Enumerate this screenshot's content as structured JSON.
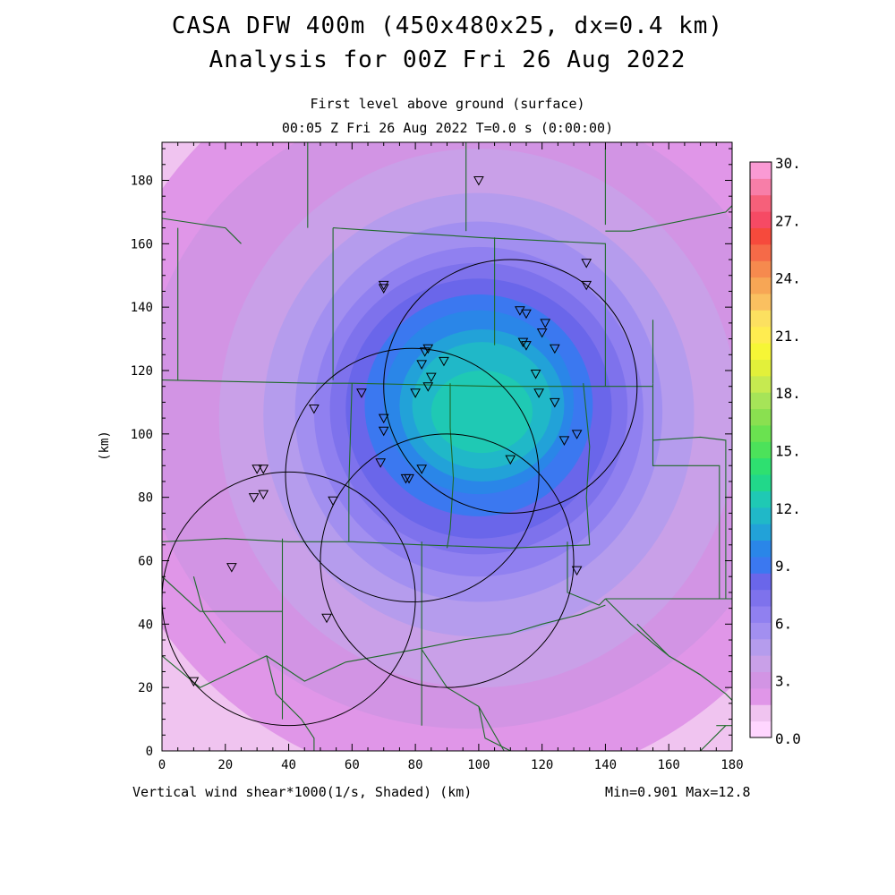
{
  "header": {
    "title_line1": "CASA DFW 400m (450x480x25, dx=0.4 km)",
    "title_line2": "Analysis for 00Z Fri 26 Aug 2022",
    "subtitle_line1": "First level above ground (surface)",
    "subtitle_line2": "00:05 Z Fri 26 Aug 2022   T=0.0 s (0:00:00)"
  },
  "footer": {
    "xlabel": "Vertical wind shear*1000(1/s, Shaded)  (km)",
    "minmax": "Min=0.901 Max=12.8"
  },
  "chart_data": {
    "type": "heatmap",
    "title": "CASA DFW 400m (450x480x25, dx=0.4 km) Analysis for 00Z Fri 26 Aug 2022",
    "xlabel": "Vertical wind shear*1000(1/s, Shaded)  (km)",
    "ylabel": "(km)",
    "xlim": [
      0,
      180
    ],
    "ylim": [
      0,
      192
    ],
    "x_ticks": [
      0,
      20,
      40,
      60,
      80,
      100,
      120,
      140,
      160,
      180
    ],
    "y_ticks": [
      0,
      20,
      40,
      60,
      80,
      100,
      120,
      140,
      160,
      180
    ],
    "field_min": 0.901,
    "field_max": 12.8,
    "field_center": [
      100,
      105
    ],
    "colorbar": {
      "labels": [
        "0.0",
        "3.",
        "6.",
        "9.",
        "12.",
        "15.",
        "18.",
        "21.",
        "24.",
        "27.",
        "30."
      ],
      "label_values": [
        0,
        3,
        6,
        9,
        12,
        15,
        18,
        21,
        24,
        27,
        30
      ],
      "levels": [
        0,
        1.5,
        3,
        3.75,
        4.5,
        5.25,
        6,
        6.75,
        7.5,
        8.25,
        9,
        9.75,
        10.5,
        11.25,
        12,
        12.75,
        13.5,
        14.25,
        15,
        15.75,
        16.5,
        17.25,
        18,
        18.75,
        19.5,
        20.25,
        21,
        21.75,
        22.5,
        23.25,
        24,
        25.5,
        27,
        28.5,
        30
      ],
      "colors": [
        "#ffd6ff",
        "#f0c4f0",
        "#e096e8",
        "#d294e4",
        "#c9a0e8",
        "#b59ced",
        "#a28ff0",
        "#9080f0",
        "#7e72ec",
        "#6a66ea",
        "#3b78f0",
        "#2a86e8",
        "#22a2d8",
        "#20b8c8",
        "#1fc9b4",
        "#21d88a",
        "#2ee070",
        "#4ce25a",
        "#6ae250",
        "#8ae050",
        "#a6e458",
        "#c6ea50",
        "#e2f03a",
        "#f6f636",
        "#ffec50",
        "#fce060",
        "#fac060",
        "#f7a655",
        "#f68a4e",
        "#f56a48",
        "#f64a3c",
        "#f64a64",
        "#f6607a",
        "#f77ea8",
        "#fa9ad4"
      ]
    },
    "contour_bands": [
      {
        "level": 1.5,
        "cx": 100,
        "cy": 105,
        "rx": 150,
        "ry": 150
      },
      {
        "level": 3,
        "cx": 98,
        "cy": 108,
        "rx": 120,
        "ry": 120
      },
      {
        "level": 3.75,
        "cx": 97,
        "cy": 107,
        "rx": 104,
        "ry": 100
      },
      {
        "level": 4.5,
        "cx": 100,
        "cy": 105,
        "rx": 82,
        "ry": 85
      },
      {
        "level": 5.25,
        "cx": 100,
        "cy": 106,
        "rx": 68,
        "ry": 70
      },
      {
        "level": 6,
        "cx": 100,
        "cy": 107,
        "rx": 58,
        "ry": 60
      },
      {
        "level": 6.75,
        "cx": 100,
        "cy": 107,
        "rx": 52,
        "ry": 52
      },
      {
        "level": 7.5,
        "cx": 100,
        "cy": 108,
        "rx": 47,
        "ry": 46
      },
      {
        "level": 8.25,
        "cx": 100,
        "cy": 108,
        "rx": 42,
        "ry": 41
      },
      {
        "level": 9,
        "cx": 100,
        "cy": 109,
        "rx": 36,
        "ry": 35
      },
      {
        "level": 9.75,
        "cx": 100,
        "cy": 110,
        "rx": 30,
        "ry": 29
      },
      {
        "level": 10.5,
        "cx": 101,
        "cy": 109,
        "rx": 26,
        "ry": 24
      },
      {
        "level": 11.25,
        "cx": 101,
        "cy": 109,
        "rx": 22,
        "ry": 20
      },
      {
        "level": 12,
        "cx": 101,
        "cy": 107,
        "rx": 16,
        "ry": 13
      }
    ],
    "radar_rings": [
      {
        "cx": 79,
        "cy": 87,
        "r": 40
      },
      {
        "cx": 40,
        "cy": 48,
        "r": 40
      },
      {
        "cx": 90,
        "cy": 60,
        "r": 40
      },
      {
        "cx": 110,
        "cy": 115,
        "r": 40
      }
    ],
    "stations": [
      [
        100,
        180
      ],
      [
        70,
        147
      ],
      [
        70,
        146
      ],
      [
        134,
        154
      ],
      [
        134,
        147
      ],
      [
        113,
        139
      ],
      [
        115,
        138
      ],
      [
        121,
        135
      ],
      [
        120,
        132
      ],
      [
        114,
        129
      ],
      [
        115,
        128
      ],
      [
        124,
        127
      ],
      [
        84,
        127
      ],
      [
        83,
        126
      ],
      [
        89,
        123
      ],
      [
        82,
        122
      ],
      [
        118,
        119
      ],
      [
        85,
        118
      ],
      [
        84,
        115
      ],
      [
        63,
        113
      ],
      [
        80,
        113
      ],
      [
        119,
        113
      ],
      [
        124,
        110
      ],
      [
        48,
        108
      ],
      [
        70,
        105
      ],
      [
        70,
        101
      ],
      [
        131,
        100
      ],
      [
        127,
        98
      ],
      [
        69,
        91
      ],
      [
        110,
        92
      ],
      [
        82,
        89
      ],
      [
        78,
        86
      ],
      [
        77,
        86
      ],
      [
        30,
        89
      ],
      [
        32,
        89
      ],
      [
        32,
        81
      ],
      [
        29,
        80
      ],
      [
        54,
        79
      ],
      [
        22,
        58
      ],
      [
        131,
        57
      ],
      [
        52,
        42
      ],
      [
        10,
        22
      ]
    ],
    "boundaries": [
      [
        [
          0,
          117
        ],
        [
          48,
          116
        ],
        [
          60,
          116
        ],
        [
          105,
          115
        ],
        [
          133,
          115
        ],
        [
          155,
          115
        ]
      ],
      [
        [
          5,
          165
        ],
        [
          5,
          117
        ]
      ],
      [
        [
          0,
          66
        ],
        [
          20,
          67
        ],
        [
          40,
          66
        ],
        [
          60,
          66
        ],
        [
          82,
          65
        ],
        [
          110,
          64
        ],
        [
          135,
          65
        ]
      ],
      [
        [
          60,
          116
        ],
        [
          59,
          84
        ],
        [
          59,
          66
        ]
      ],
      [
        [
          82,
          66
        ],
        [
          82,
          8
        ]
      ],
      [
        [
          91,
          116
        ],
        [
          91,
          102
        ],
        [
          92,
          86
        ],
        [
          91,
          70
        ],
        [
          90,
          64
        ]
      ],
      [
        [
          133,
          116
        ],
        [
          135,
          96
        ],
        [
          134,
          80
        ],
        [
          135,
          65
        ]
      ],
      [
        [
          54,
          165
        ],
        [
          54,
          117
        ]
      ],
      [
        [
          54,
          165
        ],
        [
          100,
          162
        ],
        [
          140,
          160
        ],
        [
          140,
          115
        ]
      ],
      [
        [
          105,
          162
        ],
        [
          105,
          128
        ]
      ],
      [
        [
          140,
          166
        ],
        [
          140,
          190
        ]
      ],
      [
        [
          25,
          160
        ],
        [
          20,
          165
        ],
        [
          0,
          168
        ]
      ],
      [
        [
          46,
          192
        ],
        [
          46,
          165
        ]
      ],
      [
        [
          96,
          192
        ],
        [
          96,
          164
        ]
      ],
      [
        [
          155,
          116
        ],
        [
          155,
          90
        ],
        [
          176,
          90
        ],
        [
          176,
          48
        ],
        [
          180,
          48
        ]
      ],
      [
        [
          155,
          136
        ],
        [
          155,
          116
        ]
      ],
      [
        [
          140,
          164
        ],
        [
          148,
          164
        ],
        [
          178,
          170
        ],
        [
          180,
          172
        ]
      ],
      [
        [
          155,
          98
        ],
        [
          170,
          99
        ],
        [
          178,
          98
        ],
        [
          178,
          48
        ]
      ],
      [
        [
          140,
          48
        ],
        [
          176,
          48
        ]
      ],
      [
        [
          38,
          67
        ],
        [
          38,
          10
        ]
      ],
      [
        [
          0,
          55
        ],
        [
          12,
          44
        ],
        [
          38,
          44
        ]
      ],
      [
        [
          0,
          30
        ],
        [
          12,
          20
        ],
        [
          33,
          30
        ],
        [
          45,
          22
        ],
        [
          58,
          28
        ],
        [
          80,
          32
        ],
        [
          95,
          35
        ],
        [
          110,
          37
        ],
        [
          120,
          40
        ],
        [
          132,
          43
        ],
        [
          140,
          46
        ]
      ],
      [
        [
          33,
          30
        ],
        [
          36,
          18
        ],
        [
          44,
          10
        ],
        [
          48,
          4
        ],
        [
          48,
          0
        ]
      ],
      [
        [
          82,
          32
        ],
        [
          90,
          20
        ],
        [
          100,
          14
        ],
        [
          108,
          0
        ]
      ],
      [
        [
          100,
          14
        ],
        [
          102,
          4
        ],
        [
          110,
          0
        ]
      ],
      [
        [
          10,
          55
        ],
        [
          13,
          44
        ],
        [
          20,
          34
        ]
      ],
      [
        [
          140,
          48
        ],
        [
          148,
          40
        ],
        [
          155,
          34
        ],
        [
          160,
          30
        ],
        [
          170,
          24
        ],
        [
          178,
          18
        ],
        [
          180,
          16
        ]
      ],
      [
        [
          175,
          8
        ],
        [
          180,
          8
        ]
      ],
      [
        [
          170,
          0
        ],
        [
          178,
          8
        ]
      ],
      [
        [
          128,
          66
        ],
        [
          128,
          50
        ],
        [
          138,
          46
        ],
        [
          140,
          48
        ]
      ],
      [
        [
          150,
          40
        ],
        [
          160,
          30
        ],
        [
          170,
          24
        ]
      ]
    ]
  }
}
